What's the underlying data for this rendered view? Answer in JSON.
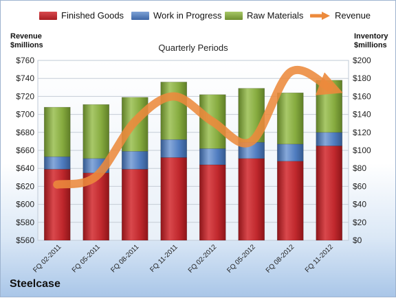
{
  "chart_data": {
    "type": "bar",
    "stacked": true,
    "subtitle": "Quarterly Periods",
    "company": "Steelcase",
    "left_axis_title": [
      "Revenue",
      "$millions"
    ],
    "right_axis_title": [
      "Inventory",
      "$millions"
    ],
    "left_axis": {
      "min": 560,
      "max": 760,
      "step": 20,
      "prefix": "$"
    },
    "right_axis": {
      "min": 0,
      "max": 200,
      "step": 20,
      "prefix": "$"
    },
    "categories": [
      "FQ 02-2011",
      "FQ 05-2011",
      "FQ 08-2011",
      "FQ 11-2011",
      "FQ 02-2012",
      "FQ 05-2012",
      "FQ 08-2012",
      "FQ 11-2012"
    ],
    "series": [
      {
        "name": "Finished Goods",
        "axis": "right",
        "color": "#c0282d",
        "values": [
          79,
          75,
          79,
          92,
          84,
          91,
          88,
          105
        ]
      },
      {
        "name": "Work in Progress",
        "axis": "right",
        "color": "#4f7cbf",
        "values": [
          14,
          16,
          20,
          20,
          18,
          18,
          19,
          15
        ]
      },
      {
        "name": "Raw Materials",
        "axis": "right",
        "color": "#86ab3f",
        "values": [
          55,
          60,
          60,
          64,
          60,
          60,
          57,
          58
        ]
      }
    ],
    "line": {
      "name": "Revenue",
      "axis": "left",
      "color": "#ec8a3c",
      "values": [
        622,
        631,
        692,
        720,
        692,
        670,
        747,
        730
      ]
    },
    "grid": true,
    "legend": "top"
  }
}
